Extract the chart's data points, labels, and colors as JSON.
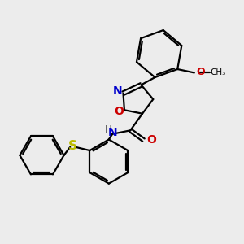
{
  "bg_color": "#ececec",
  "bond_color": "#000000",
  "N_color": "#0000cc",
  "O_color": "#cc0000",
  "S_color": "#bbbb00",
  "H_color": "#555555",
  "line_width": 1.6,
  "font_size": 9,
  "figsize": [
    3.0,
    3.0
  ],
  "dpi": 100,
  "xlim": [
    0,
    10
  ],
  "ylim": [
    0,
    10
  ]
}
